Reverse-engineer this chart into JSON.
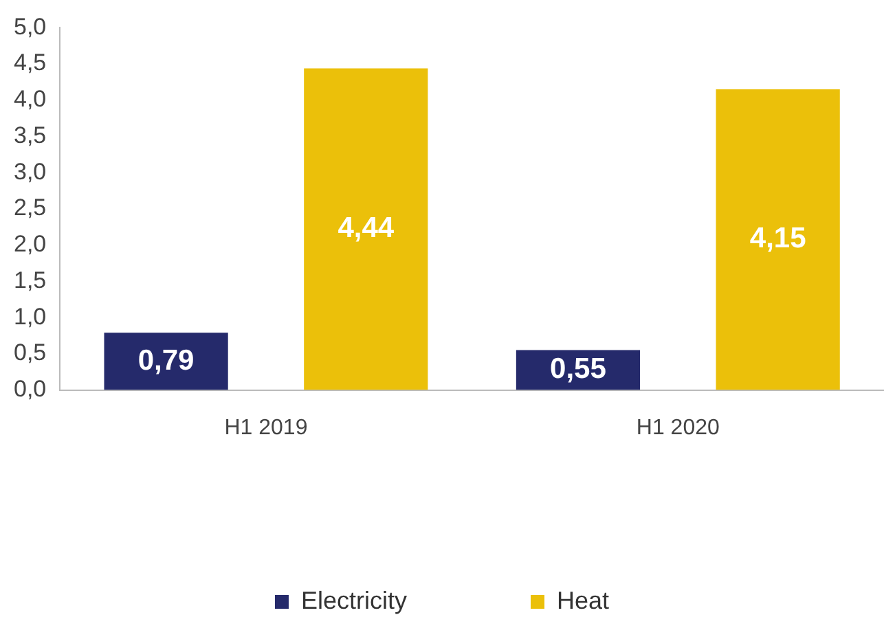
{
  "chart_data": {
    "type": "bar",
    "categories": [
      "H1 2019",
      "H1 2020"
    ],
    "series": [
      {
        "name": "Electricity",
        "color": "#252a6b",
        "values": [
          0.79,
          0.55
        ],
        "value_labels": [
          "0,79",
          "0,55"
        ]
      },
      {
        "name": "Heat",
        "color": "#ebc00a",
        "values": [
          4.44,
          4.15
        ],
        "value_labels": [
          "4,44",
          "4,15"
        ]
      }
    ],
    "ylim": [
      0,
      5
    ],
    "yticks": [
      {
        "value": 0,
        "label": "0,0"
      },
      {
        "value": 0.5,
        "label": "0,5"
      },
      {
        "value": 1,
        "label": "1,0"
      },
      {
        "value": 1.5,
        "label": "1,5"
      },
      {
        "value": 2,
        "label": "2,0"
      },
      {
        "value": 2.5,
        "label": "2,5"
      },
      {
        "value": 3,
        "label": "3,0"
      },
      {
        "value": 3.5,
        "label": "3,5"
      },
      {
        "value": 4,
        "label": "4,0"
      },
      {
        "value": 4.5,
        "label": "4,5"
      },
      {
        "value": 5,
        "label": "5,0"
      }
    ],
    "grid": false,
    "legend": "bottom"
  }
}
